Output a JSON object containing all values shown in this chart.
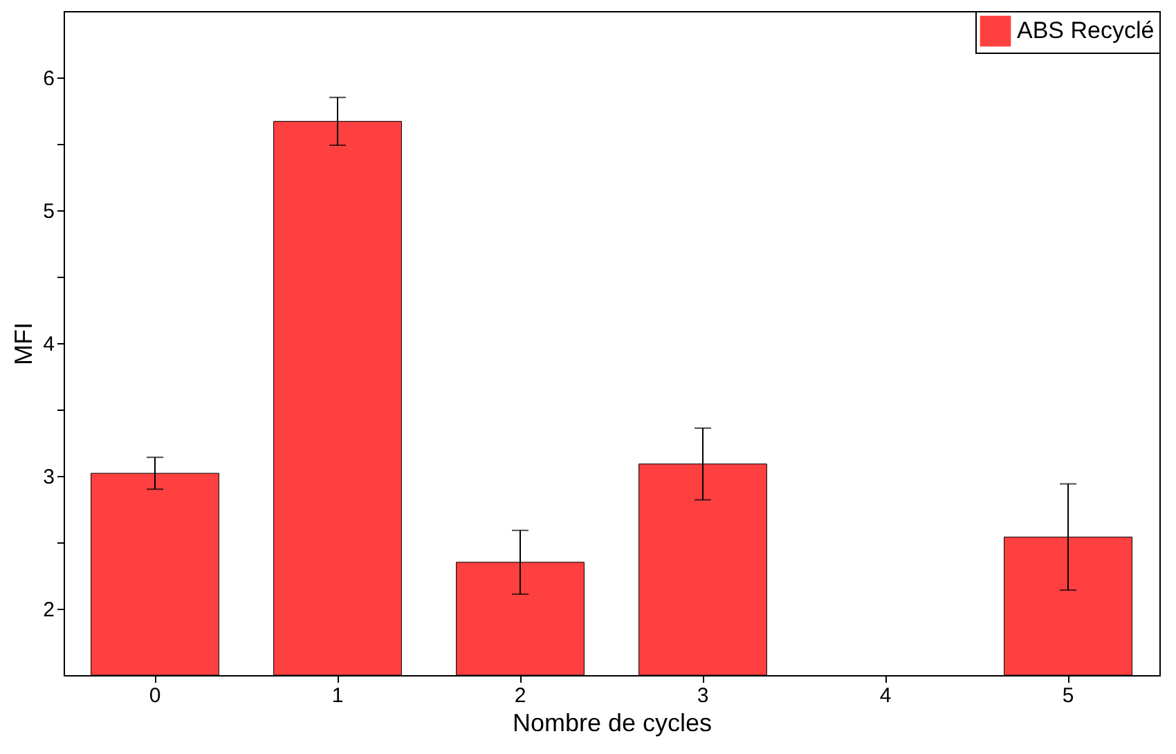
{
  "chart_data": {
    "type": "bar",
    "xlabel": "Nombre de cycles",
    "ylabel": "MFI",
    "categories": [
      "0",
      "1",
      "2",
      "3",
      "4",
      "5"
    ],
    "series": [
      {
        "name": "ABS Recyclé",
        "color": "#ff4040",
        "values": [
          3.02,
          5.67,
          2.35,
          3.09,
          null,
          2.54
        ],
        "errors": [
          0.12,
          0.18,
          0.24,
          0.27,
          null,
          0.4
        ]
      }
    ],
    "ylim": [
      1.5,
      6.5
    ],
    "yticks": [
      2,
      {
        "value": 2.5,
        "label": null
      },
      3,
      {
        "value": 3.5,
        "label": null
      },
      4,
      {
        "value": 4.5,
        "label": null
      },
      5,
      {
        "value": 5.5,
        "label": null
      },
      6
    ],
    "grid": false,
    "legend": "top right"
  }
}
